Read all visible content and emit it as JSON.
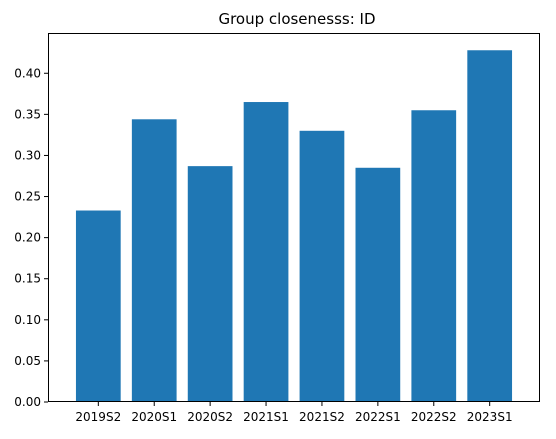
{
  "chart_data": {
    "type": "bar",
    "title": "Group closenesss: ID",
    "xlabel": "",
    "ylabel": "",
    "categories": [
      "2019S2",
      "2020S1",
      "2020S2",
      "2021S1",
      "2021S2",
      "2022S1",
      "2022S2",
      "2023S1"
    ],
    "values": [
      0.233,
      0.344,
      0.287,
      0.365,
      0.33,
      0.285,
      0.355,
      0.428
    ],
    "ylim": [
      0,
      0.449
    ],
    "yticks": [
      0.0,
      0.05,
      0.1,
      0.15,
      0.2,
      0.25,
      0.3,
      0.35,
      0.4
    ],
    "ytick_labels": [
      "0.00",
      "0.05",
      "0.10",
      "0.15",
      "0.20",
      "0.25",
      "0.30",
      "0.35",
      "0.40"
    ],
    "bar_color": "#1f77b4",
    "grid": false,
    "legend": "none"
  }
}
